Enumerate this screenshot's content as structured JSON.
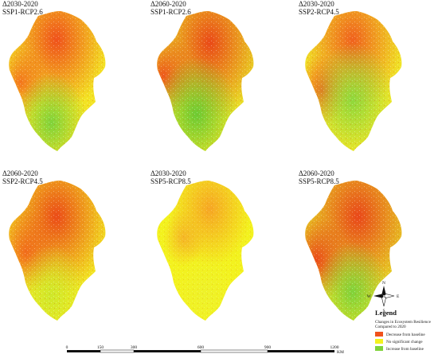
{
  "panels": [
    {
      "line1": "Δ2030-2020",
      "line2": "SSP1-RCP2.6"
    },
    {
      "line1": "Δ2060-2020",
      "line2": "SSP1-RCP2.6"
    },
    {
      "line1": "Δ2030-2020",
      "line2": "SSP2-RCP4.5"
    },
    {
      "line1": "Δ2060-2020",
      "line2": "SSP2-RCP4.5"
    },
    {
      "line1": "Δ2030-2020",
      "line2": "SSP5-RCP8.5"
    },
    {
      "line1": "Δ2060-2020",
      "line2": "SSP5-RCP8.5"
    }
  ],
  "legend": {
    "title": "Legend",
    "subtitle1": "Changes in Ecosystem Resilience",
    "subtitle2": "Compared to 2020",
    "items": [
      {
        "label": "Decrease from baseline",
        "color": "#f0521c"
      },
      {
        "label": "No significant change",
        "color": "#f3f21e"
      },
      {
        "label": "Increase from baseline",
        "color": "#7fd33a"
      }
    ]
  },
  "compass": {
    "n": "N",
    "s": "S",
    "e": "E",
    "w": "W"
  },
  "scalebar": {
    "ticks": [
      "0",
      "150",
      "300",
      "600",
      "900",
      "1200"
    ],
    "unit": "KM"
  },
  "map_colors": {
    "decrease": "#f0521c",
    "no_change": "#f3f21e",
    "increase": "#7fd33a",
    "white": "#ffffff"
  }
}
